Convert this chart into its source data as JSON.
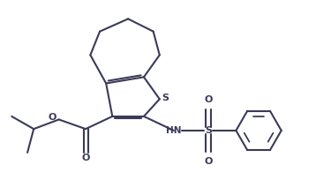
{
  "bg_color": "#ffffff",
  "line_color": "#3a3a5a",
  "line_width": 1.5,
  "fig_width": 3.58,
  "fig_height": 2.21,
  "dpi": 100,
  "xlim": [
    0,
    10
  ],
  "ylim": [
    0,
    6.2
  ],
  "S_thiophene_label": "S",
  "HN_label": "HN",
  "S_sulfonyl_label": "S",
  "O_label": "O",
  "O_carbonyl_label": "O"
}
